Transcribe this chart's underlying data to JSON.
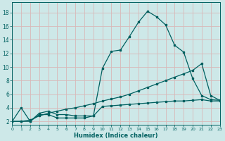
{
  "xlabel": "Humidex (Indice chaleur)",
  "background_color": "#cde8e8",
  "grid_color": "#b8d8d8",
  "line_color": "#006060",
  "x_ticks": [
    0,
    1,
    2,
    3,
    4,
    5,
    6,
    7,
    8,
    9,
    10,
    11,
    12,
    13,
    14,
    15,
    16,
    17,
    18,
    19,
    20,
    21,
    22,
    23
  ],
  "y_ticks": [
    2,
    4,
    6,
    8,
    10,
    12,
    14,
    16,
    18
  ],
  "xlim": [
    0,
    23
  ],
  "ylim": [
    1.5,
    19.5
  ],
  "series": [
    {
      "x": [
        0,
        1,
        2,
        3,
        4,
        5,
        6,
        7,
        8,
        9,
        10,
        11,
        12,
        13,
        14,
        15,
        16,
        17,
        18,
        19,
        20,
        21,
        22,
        23
      ],
      "y": [
        2,
        4,
        2,
        3,
        3,
        2.5,
        2.5,
        2.5,
        2.5,
        2.8,
        9.8,
        12.3,
        12.5,
        14.5,
        16.6,
        18.2,
        17.4,
        16.2,
        13.2,
        12.2,
        8.3,
        5.8,
        5.2,
        5.1
      ]
    },
    {
      "x": [
        0,
        1,
        2,
        3,
        4,
        5,
        6,
        7,
        8,
        9,
        10,
        11,
        12,
        13,
        14,
        15,
        16,
        17,
        18,
        19,
        20,
        21,
        22,
        23
      ],
      "y": [
        2,
        2,
        2.2,
        2.8,
        3.2,
        3.5,
        3.8,
        4.0,
        4.3,
        4.6,
        5.0,
        5.3,
        5.6,
        6.0,
        6.5,
        7.0,
        7.5,
        8.0,
        8.5,
        9.0,
        9.5,
        10.5,
        5.8,
        5.1
      ]
    },
    {
      "x": [
        0,
        1,
        2,
        3,
        4,
        5,
        6,
        7,
        8,
        9,
        10,
        11,
        12,
        13,
        14,
        15,
        16,
        17,
        18,
        19,
        20,
        21,
        22,
        23
      ],
      "y": [
        2,
        2,
        2,
        3.2,
        3.5,
        3.0,
        3.0,
        2.8,
        2.8,
        2.8,
        4.2,
        4.3,
        4.4,
        4.5,
        4.6,
        4.7,
        4.8,
        4.9,
        5.0,
        5.0,
        5.1,
        5.2,
        5.0,
        5.0
      ]
    }
  ]
}
